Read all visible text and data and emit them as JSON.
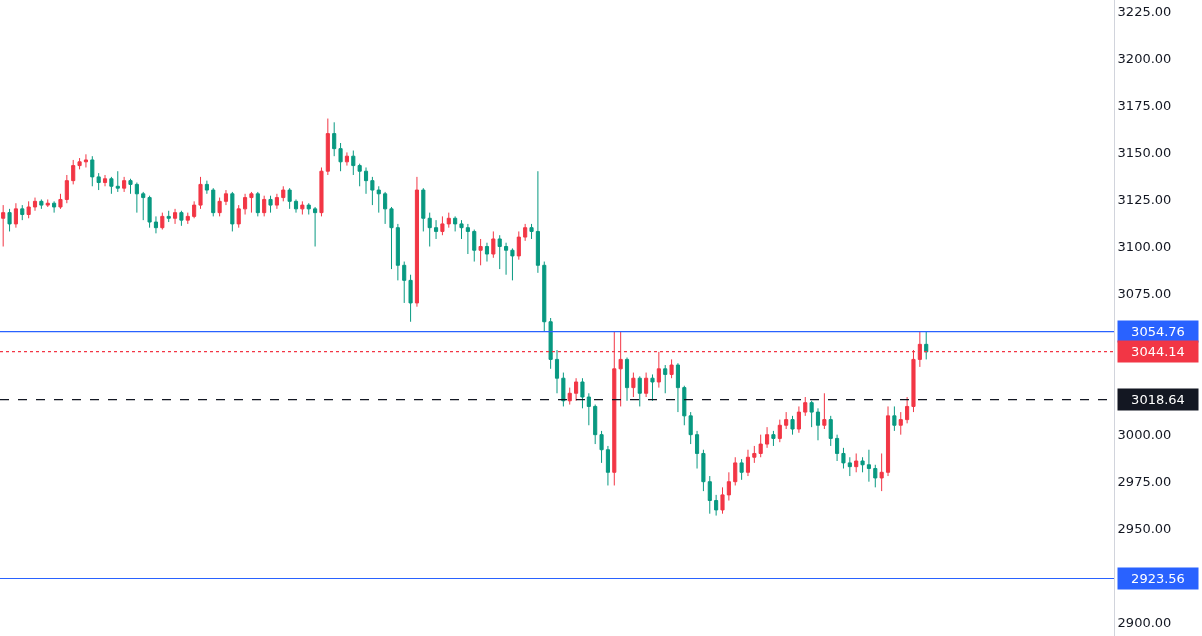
{
  "chart_data": {
    "type": "candlestick",
    "categories": [
      null,
      null,
      null,
      null,
      null,
      null,
      null,
      null,
      null,
      null,
      null,
      null,
      null,
      null,
      null,
      null,
      null,
      null,
      null,
      null,
      null,
      null,
      null,
      null,
      null,
      null,
      null,
      null,
      null,
      null,
      null,
      null,
      null,
      null,
      null,
      null,
      null,
      null,
      null,
      null,
      null,
      null,
      null,
      null,
      null,
      null,
      null,
      null,
      null,
      null,
      null,
      null,
      null,
      null,
      null,
      null,
      null,
      null,
      null,
      null,
      null,
      null,
      null,
      null,
      null,
      null,
      null,
      null,
      null,
      null,
      null,
      null,
      null,
      null,
      null,
      null,
      null,
      null,
      null,
      null,
      null,
      null,
      null,
      null,
      null,
      null,
      null,
      null,
      null,
      null,
      null,
      null,
      null,
      null,
      null,
      null,
      null,
      null,
      null,
      null,
      null,
      null,
      null,
      null,
      null,
      null,
      null,
      null,
      null,
      null,
      null,
      null,
      null,
      null,
      null,
      null,
      null,
      null,
      null,
      null,
      null,
      null,
      null,
      null,
      null,
      null,
      null,
      null,
      null,
      null,
      null,
      null,
      null,
      null,
      null,
      null,
      null,
      null,
      null,
      null,
      null,
      null,
      null,
      null,
      null,
      null,
      null,
      null,
      null,
      null,
      null,
      null,
      null,
      null,
      null,
      null,
      null,
      null,
      null,
      null,
      null,
      null,
      null,
      null,
      null,
      null,
      null,
      null,
      null,
      null,
      null,
      null,
      null,
      null,
      null
    ],
    "ohlc": [
      [
        3115,
        3122,
        3100,
        3118
      ],
      [
        3118,
        3120,
        3108,
        3112
      ],
      [
        3112,
        3123,
        3110,
        3120
      ],
      [
        3120,
        3122,
        3114,
        3117
      ],
      [
        3117,
        3124,
        3115,
        3121
      ],
      [
        3121,
        3126,
        3119,
        3124
      ],
      [
        3124,
        3125,
        3120,
        3122
      ],
      [
        3122,
        3125,
        3121,
        3123
      ],
      [
        3123,
        3124,
        3118,
        3121
      ],
      [
        3121,
        3128,
        3120,
        3125
      ],
      [
        3125,
        3138,
        3123,
        3135
      ],
      [
        3135,
        3146,
        3133,
        3143
      ],
      [
        3143,
        3147,
        3141,
        3145
      ],
      [
        3145,
        3149,
        3142,
        3146
      ],
      [
        3146,
        3148,
        3132,
        3137
      ],
      [
        3137,
        3139,
        3130,
        3134
      ],
      [
        3134,
        3138,
        3132,
        3136
      ],
      [
        3136,
        3137,
        3128,
        3132
      ],
      [
        3132,
        3140,
        3129,
        3131
      ],
      [
        3131,
        3137,
        3129,
        3135
      ],
      [
        3135,
        3136,
        3128,
        3133
      ],
      [
        3133,
        3134,
        3118,
        3128
      ],
      [
        3128,
        3129,
        3114,
        3126
      ],
      [
        3126,
        3127,
        3110,
        3113
      ],
      [
        3113,
        3116,
        3107,
        3110
      ],
      [
        3110,
        3118,
        3109,
        3116
      ],
      [
        3116,
        3119,
        3113,
        3115
      ],
      [
        3115,
        3120,
        3112,
        3118
      ],
      [
        3118,
        3119,
        3111,
        3114
      ],
      [
        3114,
        3118,
        3112,
        3116
      ],
      [
        3116,
        3124,
        3115,
        3122
      ],
      [
        3122,
        3137,
        3120,
        3133
      ],
      [
        3133,
        3135,
        3128,
        3130
      ],
      [
        3130,
        3131,
        3116,
        3118
      ],
      [
        3118,
        3126,
        3116,
        3124
      ],
      [
        3124,
        3130,
        3122,
        3128
      ],
      [
        3128,
        3129,
        3108,
        3112
      ],
      [
        3112,
        3122,
        3110,
        3120
      ],
      [
        3120,
        3128,
        3117,
        3126
      ],
      [
        3126,
        3129,
        3118,
        3128
      ],
      [
        3128,
        3129,
        3116,
        3118
      ],
      [
        3118,
        3127,
        3116,
        3125
      ],
      [
        3125,
        3127,
        3118,
        3122
      ],
      [
        3122,
        3128,
        3120,
        3126
      ],
      [
        3126,
        3132,
        3124,
        3130
      ],
      [
        3130,
        3131,
        3120,
        3124
      ],
      [
        3124,
        3125,
        3118,
        3120
      ],
      [
        3120,
        3124,
        3117,
        3122
      ],
      [
        3122,
        3123,
        3117,
        3120
      ],
      [
        3120,
        3121,
        3100,
        3118
      ],
      [
        3118,
        3142,
        3116,
        3140
      ],
      [
        3140,
        3168,
        3138,
        3160
      ],
      [
        3160,
        3166,
        3148,
        3152
      ],
      [
        3152,
        3155,
        3140,
        3145
      ],
      [
        3145,
        3150,
        3143,
        3148
      ],
      [
        3148,
        3151,
        3138,
        3143
      ],
      [
        3143,
        3144,
        3132,
        3140
      ],
      [
        3140,
        3142,
        3128,
        3135
      ],
      [
        3135,
        3137,
        3122,
        3130
      ],
      [
        3130,
        3132,
        3118,
        3128
      ],
      [
        3128,
        3129,
        3112,
        3120
      ],
      [
        3120,
        3121,
        3088,
        3110
      ],
      [
        3110,
        3112,
        3082,
        3090
      ],
      [
        3090,
        3092,
        3070,
        3082
      ],
      [
        3082,
        3085,
        3060,
        3070
      ],
      [
        3070,
        3137,
        3068,
        3130
      ],
      [
        3130,
        3131,
        3108,
        3115
      ],
      [
        3115,
        3118,
        3100,
        3110
      ],
      [
        3110,
        3114,
        3104,
        3108
      ],
      [
        3108,
        3116,
        3106,
        3112
      ],
      [
        3112,
        3118,
        3110,
        3115
      ],
      [
        3115,
        3116,
        3108,
        3112
      ],
      [
        3112,
        3114,
        3104,
        3110
      ],
      [
        3110,
        3112,
        3096,
        3108
      ],
      [
        3108,
        3109,
        3092,
        3098
      ],
      [
        3098,
        3104,
        3090,
        3100
      ],
      [
        3100,
        3102,
        3092,
        3096
      ],
      [
        3096,
        3108,
        3094,
        3104
      ],
      [
        3104,
        3106,
        3088,
        3100
      ],
      [
        3100,
        3102,
        3085,
        3098
      ],
      [
        3098,
        3099,
        3082,
        3095
      ],
      [
        3095,
        3108,
        3093,
        3105
      ],
      [
        3105,
        3112,
        3103,
        3110
      ],
      [
        3110,
        3112,
        3104,
        3108
      ],
      [
        3108,
        3140,
        3086,
        3090
      ],
      [
        3090,
        3092,
        3055,
        3060
      ],
      [
        3060,
        3062,
        3035,
        3040
      ],
      [
        3040,
        3045,
        3022,
        3030
      ],
      [
        3030,
        3033,
        3015,
        3018
      ],
      [
        3018,
        3025,
        3016,
        3022
      ],
      [
        3022,
        3030,
        3018,
        3028
      ],
      [
        3028,
        3030,
        3014,
        3020
      ],
      [
        3020,
        3022,
        3005,
        3015
      ],
      [
        3015,
        3016,
        2995,
        3000
      ],
      [
        3000,
        3002,
        2985,
        2992
      ],
      [
        2992,
        2994,
        2973,
        2980
      ],
      [
        2980,
        3055,
        2973,
        3035
      ],
      [
        3035,
        3055,
        3015,
        3040
      ],
      [
        3040,
        3041,
        3018,
        3025
      ],
      [
        3025,
        3033,
        3020,
        3030
      ],
      [
        3030,
        3031,
        3015,
        3022
      ],
      [
        3022,
        3033,
        3020,
        3030
      ],
      [
        3030,
        3032,
        3018,
        3028
      ],
      [
        3028,
        3044,
        3025,
        3035
      ],
      [
        3035,
        3037,
        3022,
        3032
      ],
      [
        3032,
        3040,
        3030,
        3037
      ],
      [
        3037,
        3038,
        3012,
        3025
      ],
      [
        3025,
        3026,
        3005,
        3010
      ],
      [
        3010,
        3012,
        2995,
        3000
      ],
      [
        3000,
        3002,
        2982,
        2990
      ],
      [
        2990,
        2992,
        2970,
        2975
      ],
      [
        2975,
        2978,
        2958,
        2965
      ],
      [
        2965,
        2968,
        2957,
        2960
      ],
      [
        2960,
        2972,
        2958,
        2968
      ],
      [
        2968,
        2980,
        2965,
        2975
      ],
      [
        2975,
        2988,
        2973,
        2985
      ],
      [
        2985,
        2987,
        2976,
        2980
      ],
      [
        2980,
        2992,
        2978,
        2988
      ],
      [
        2988,
        2994,
        2985,
        2990
      ],
      [
        2990,
        3000,
        2988,
        2995
      ],
      [
        2995,
        3004,
        2993,
        3000
      ],
      [
        3000,
        3002,
        2994,
        2998
      ],
      [
        2998,
        3008,
        2996,
        3005
      ],
      [
        3005,
        3012,
        3003,
        3008
      ],
      [
        3008,
        3010,
        3000,
        3003
      ],
      [
        3003,
        3015,
        3001,
        3012
      ],
      [
        3012,
        3020,
        3010,
        3017
      ],
      [
        3017,
        3018,
        3004,
        3012
      ],
      [
        3012,
        3014,
        2997,
        3005
      ],
      [
        3005,
        3022,
        3003,
        3008
      ],
      [
        3008,
        3010,
        2994,
        2998
      ],
      [
        2998,
        3000,
        2986,
        2990
      ],
      [
        2990,
        2993,
        2982,
        2985
      ],
      [
        2985,
        2988,
        2978,
        2983
      ],
      [
        2983,
        2990,
        2980,
        2986
      ],
      [
        2986,
        2988,
        2980,
        2984
      ],
      [
        2984,
        2992,
        2975,
        2982
      ],
      [
        2982,
        2984,
        2972,
        2977
      ],
      [
        2977,
        2990,
        2970,
        2980
      ],
      [
        2980,
        3015,
        2978,
        3010
      ],
      [
        3010,
        3015,
        3002,
        3005
      ],
      [
        3005,
        3012,
        3000,
        3008
      ],
      [
        3008,
        3020,
        3006,
        3015
      ],
      [
        3015,
        3045,
        3012,
        3040
      ],
      [
        3040,
        3055,
        3036,
        3048
      ],
      [
        3048,
        3055,
        3040,
        3044
      ],
      null,
      null,
      null,
      null,
      null,
      null,
      null,
      null,
      null,
      null,
      null,
      null,
      null,
      null,
      null,
      null,
      null,
      null,
      null,
      null,
      null,
      null,
      null,
      null,
      null,
      null,
      null,
      null,
      null
    ],
    "ylim": [
      2893,
      3231
    ],
    "yticks": [
      {
        "value": 2900,
        "label": "2900.00"
      },
      {
        "value": 2950,
        "label": "2950.00"
      },
      {
        "value": 2975,
        "label": "2975.00"
      },
      {
        "value": 3000,
        "label": "3000.00"
      },
      {
        "value": 3075,
        "label": "3075.00"
      },
      {
        "value": 3100,
        "label": "3100.00"
      },
      {
        "value": 3125,
        "label": "3125.00"
      },
      {
        "value": 3150,
        "label": "3150.00"
      },
      {
        "value": 3175,
        "label": "3175.00"
      },
      {
        "value": 3200,
        "label": "3200.00"
      },
      {
        "value": 3225,
        "label": "3225.00"
      }
    ],
    "ref_lines": [
      {
        "axis": "y",
        "value": 3054.76,
        "label": "3054.76",
        "color": "#2962ff",
        "line_style": "solid"
      },
      {
        "axis": "y",
        "value": 3044.14,
        "label": "3044.14",
        "color": "#f23645",
        "line_style": "dotted"
      },
      {
        "axis": "y",
        "value": 3018.64,
        "label": "3018.64",
        "color": "#131722",
        "line_style": "dashed"
      },
      {
        "axis": "y",
        "value": 2923.56,
        "label": "2923.56",
        "color": "#2962ff",
        "line_style": "solid"
      }
    ],
    "legend": false
  }
}
